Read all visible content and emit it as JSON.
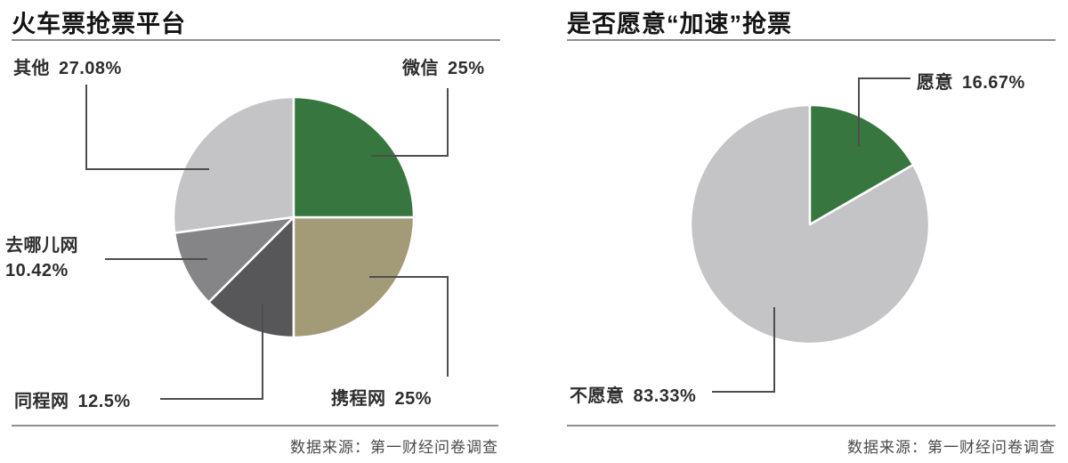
{
  "charts": [
    {
      "title": "火车票抢票平台",
      "source": "数据来源：第一财经问卷调查"
    },
    {
      "title": "是否愿意“加速”抢票",
      "source": "数据来源：第一财经问卷调查"
    }
  ],
  "chart_data": [
    {
      "type": "pie",
      "title": "火车票抢票平台",
      "start_angle_deg": 0,
      "direction": "clockwise",
      "legend_position": "outside-callouts",
      "slices": [
        {
          "name": "微信",
          "value": 25,
          "pct_label": "25%",
          "color": "#37773f"
        },
        {
          "name": "携程网",
          "value": 25,
          "pct_label": "25%",
          "color": "#a39b78"
        },
        {
          "name": "同程网",
          "value": 12.5,
          "pct_label": "12.5%",
          "color": "#575659"
        },
        {
          "name": "去哪儿网",
          "value": 10.42,
          "pct_label": "10.42%",
          "color": "#858587"
        },
        {
          "name": "其他",
          "value": 27.08,
          "pct_label": "27.08%",
          "color": "#c4c4c6"
        }
      ]
    },
    {
      "type": "pie",
      "title": "是否愿意“加速”抢票",
      "start_angle_deg": 0,
      "direction": "clockwise",
      "legend_position": "outside-callouts",
      "slices": [
        {
          "name": "愿意",
          "value": 16.67,
          "pct_label": "16.67%",
          "color": "#37773f"
        },
        {
          "name": "不愿意",
          "value": 83.33,
          "pct_label": "83.33%",
          "color": "#c4c4c6"
        }
      ]
    }
  ]
}
